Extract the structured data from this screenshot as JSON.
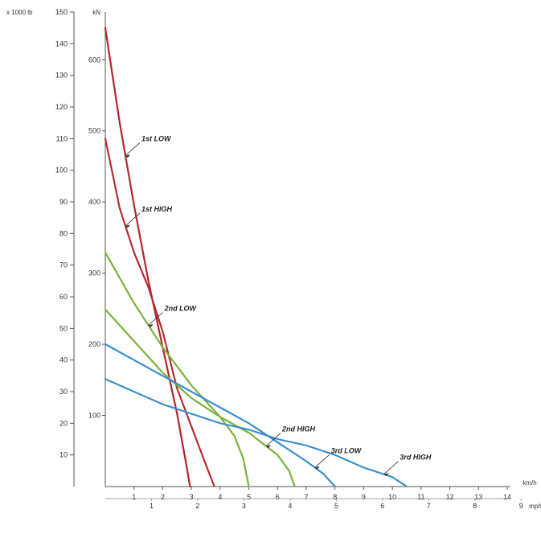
{
  "chart_data": {
    "type": "line",
    "title": "",
    "left_axis": {
      "unit": "x 1000 lb",
      "ticks": [
        10,
        20,
        30,
        40,
        50,
        60,
        70,
        80,
        90,
        100,
        110,
        120,
        130,
        140,
        150
      ],
      "range": [
        0,
        150
      ]
    },
    "inner_axis": {
      "unit": "kN",
      "ticks": [
        100,
        200,
        300,
        400,
        500,
        600
      ],
      "range": [
        0,
        667
      ]
    },
    "x_axis": {
      "unit": "km/h",
      "ticks": [
        1,
        2,
        3,
        4,
        5,
        6,
        7,
        8,
        9,
        10,
        11,
        12,
        13,
        14
      ],
      "range": [
        0,
        14
      ]
    },
    "x2_axis": {
      "unit": "mph",
      "ticks": [
        1,
        2,
        3,
        4,
        5,
        6,
        7,
        8,
        9
      ],
      "range": [
        0,
        8.7
      ]
    },
    "series": [
      {
        "name": "1st LOW",
        "color": "#b3272b",
        "dashed": false,
        "points": [
          [
            0,
            145
          ],
          [
            0.5,
            115
          ],
          [
            1,
            89
          ],
          [
            1.5,
            65
          ],
          [
            2,
            44
          ],
          [
            2.5,
            23
          ],
          [
            2.8,
            8
          ],
          [
            2.95,
            0
          ]
        ]
      },
      {
        "name": "1st HIGH",
        "color": "#b3272b",
        "dashed": true,
        "points": [
          [
            0,
            110
          ],
          [
            0.5,
            88
          ],
          [
            1,
            74
          ],
          [
            1.5,
            63
          ],
          [
            2,
            49
          ],
          [
            2.5,
            31
          ],
          [
            3,
            19
          ],
          [
            3.5,
            7
          ],
          [
            3.8,
            0
          ]
        ]
      },
      {
        "name": "2nd LOW",
        "color": "#7cb23a",
        "dashed": false,
        "points": [
          [
            0,
            74
          ],
          [
            1,
            58
          ],
          [
            2,
            44
          ],
          [
            3,
            32
          ],
          [
            4,
            22
          ],
          [
            4.5,
            16
          ],
          [
            4.8,
            9
          ],
          [
            5,
            0
          ]
        ]
      },
      {
        "name": "2nd HIGH",
        "color": "#7cb23a",
        "dashed": false,
        "points": [
          [
            0,
            56
          ],
          [
            1,
            46
          ],
          [
            2,
            36
          ],
          [
            3,
            28
          ],
          [
            4,
            22
          ],
          [
            5,
            17
          ],
          [
            6,
            10
          ],
          [
            6.4,
            5
          ],
          [
            6.6,
            0
          ]
        ]
      },
      {
        "name": "3rd LOW",
        "color": "#3a8fcb",
        "dashed": false,
        "points": [
          [
            0,
            45
          ],
          [
            1,
            40
          ],
          [
            2,
            35
          ],
          [
            3,
            30
          ],
          [
            4,
            25
          ],
          [
            5,
            20
          ],
          [
            6,
            14
          ],
          [
            7,
            8
          ],
          [
            7.6,
            4
          ],
          [
            8,
            0
          ]
        ]
      },
      {
        "name": "3rd HIGH",
        "color": "#3a8fcb",
        "dashed": true,
        "points": [
          [
            0,
            34
          ],
          [
            1,
            30
          ],
          [
            2,
            26
          ],
          [
            3,
            23
          ],
          [
            4,
            20
          ],
          [
            5,
            18
          ],
          [
            6,
            15
          ],
          [
            7,
            13
          ],
          [
            8,
            10
          ],
          [
            9,
            6
          ],
          [
            10,
            3
          ],
          [
            10.5,
            0
          ]
        ]
      }
    ],
    "annotations": [
      {
        "text": "1st LOW",
        "series": 0,
        "at_x": 0.7
      },
      {
        "text": "1st HIGH",
        "series": 1,
        "at_x": 0.7
      },
      {
        "text": "2nd LOW",
        "series": 2,
        "at_x": 1.5
      },
      {
        "text": "2nd HIGH",
        "series": 3,
        "at_x": 5.6
      },
      {
        "text": "3rd LOW",
        "series": 4,
        "at_x": 7.3
      },
      {
        "text": "3rd HIGH",
        "series": 5,
        "at_x": 9.7
      }
    ],
    "grid": false
  }
}
